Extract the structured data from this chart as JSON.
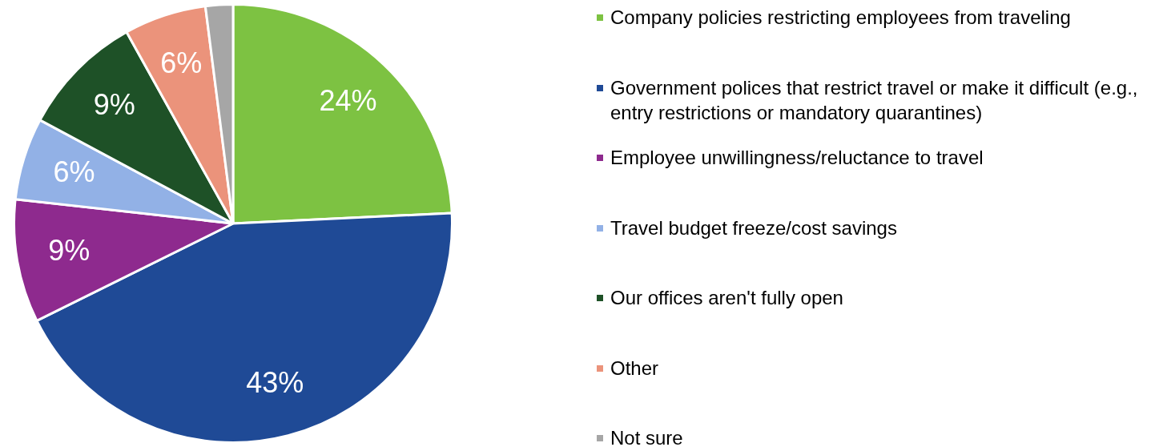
{
  "chart_data": {
    "type": "pie",
    "categories": [
      "Company policies restricting employees from traveling",
      "Government polices that restrict travel or make it difficult (e.g., entry restrictions or mandatory quarantines)",
      "Employee unwillingness/reluctance to travel",
      "Travel budget freeze/cost savings",
      "Our offices aren't fully open",
      "Other",
      "Not sure"
    ],
    "values": [
      24,
      43,
      9,
      6,
      9,
      6,
      2
    ],
    "value_labels": [
      "24%",
      "43%",
      "9%",
      "6%",
      "9%",
      "6%",
      null
    ],
    "colors": [
      "#7dc242",
      "#1f4a96",
      "#8e2a8e",
      "#92b1e6",
      "#1e5127",
      "#eb937b",
      "#a6a6a6"
    ],
    "legend": "right"
  }
}
